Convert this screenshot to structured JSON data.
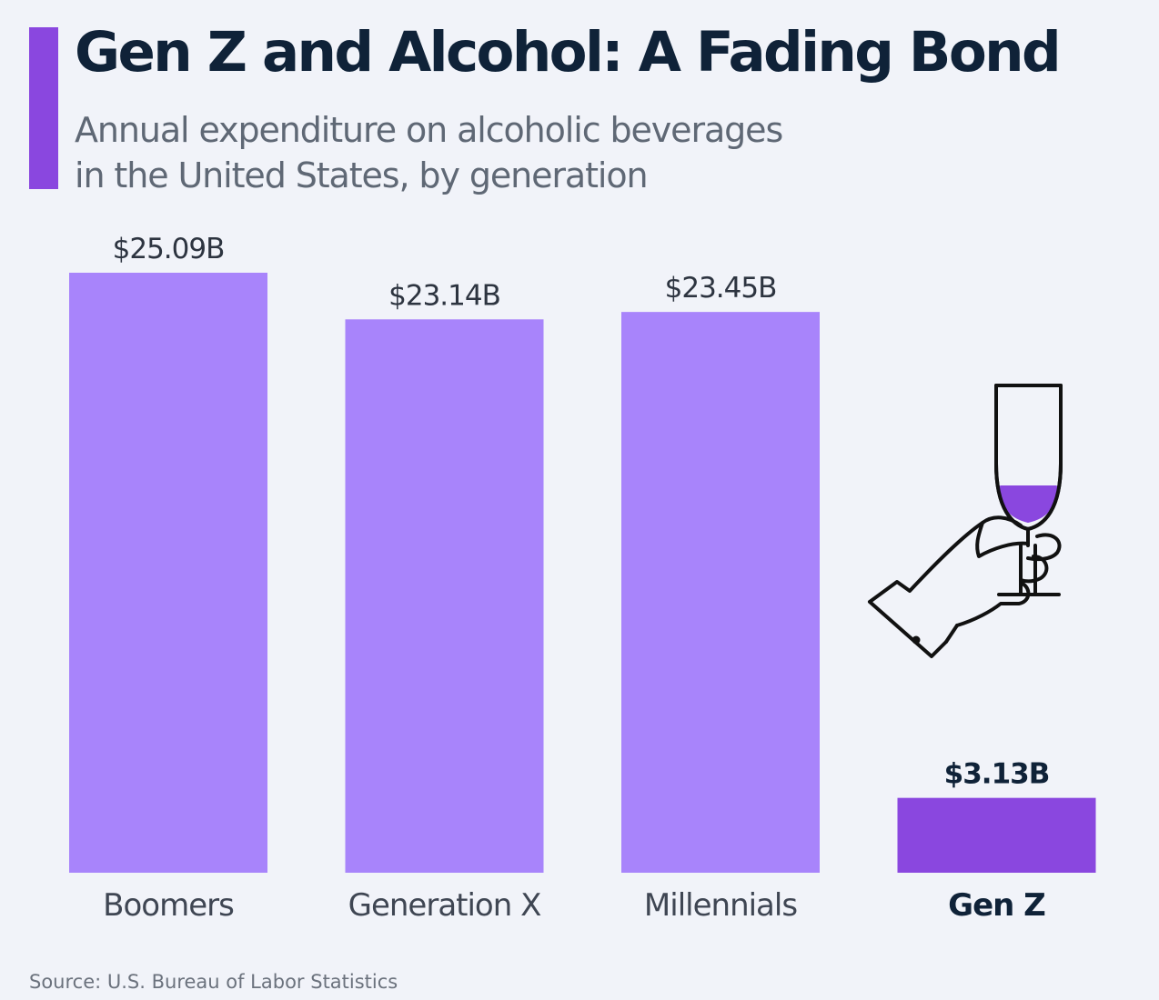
{
  "header": {
    "title": "Gen Z and Alcohol: A Fading Bond",
    "subtitle_line1": "Annual expenditure on alcoholic beverages",
    "subtitle_line2": "in the United States, by generation"
  },
  "footer": {
    "source": "Source: U.S. Bureau of Labor Statistics"
  },
  "colors": {
    "accent": "#8a47df",
    "bar": "#a884fb",
    "bar_highlight": "#8a47df",
    "title": "#0f2238",
    "label": "#3f4653",
    "background": "#f1f3f9"
  },
  "icon": "wine-glass-hand-icon",
  "chart_data": {
    "type": "bar",
    "title": "Gen Z and Alcohol: A Fading Bond",
    "subtitle": "Annual expenditure on alcoholic beverages in the United States, by generation",
    "categories": [
      "Boomers",
      "Generation X",
      "Millennials",
      "Gen Z"
    ],
    "values": [
      25.09,
      23.14,
      23.45,
      3.13
    ],
    "value_labels": [
      "$25.09B",
      "$23.14B",
      "$23.45B",
      "$3.13B"
    ],
    "highlight": "Gen Z",
    "xlabel": "",
    "ylabel": "",
    "ylim": [
      0,
      25.09
    ],
    "grid": false,
    "legend": "none"
  }
}
